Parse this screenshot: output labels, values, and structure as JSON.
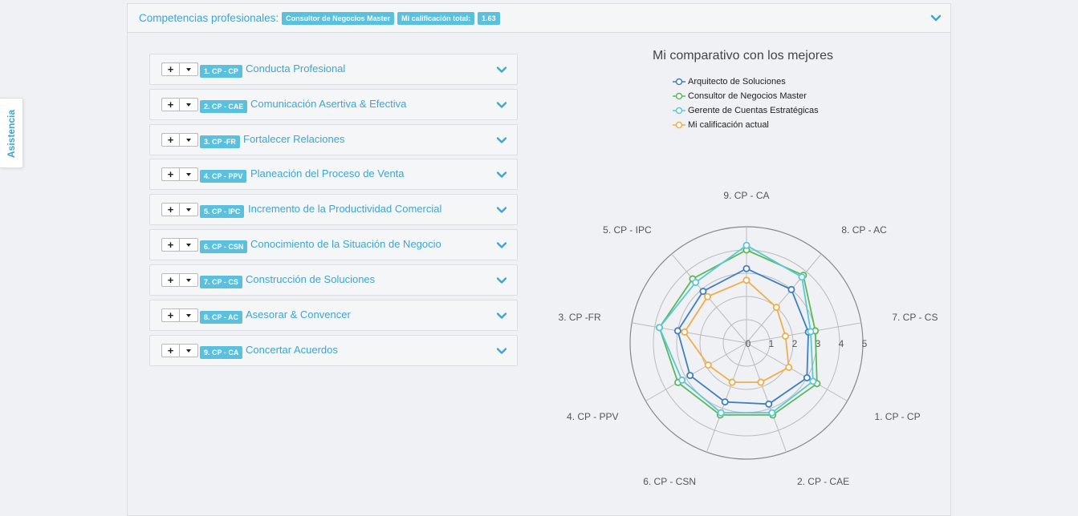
{
  "side_tab": {
    "label": "Asistencia"
  },
  "header": {
    "title": "Competencias profesionales:",
    "badge_role": "Consultor de Negocios Master",
    "badge_score_label": "Mi calificación total:",
    "badge_score_value": "1.63"
  },
  "competencies": [
    {
      "code": "1. CP - CP",
      "title": "Conducta Profesional"
    },
    {
      "code": "2. CP - CAE",
      "title": "Comunicación Asertiva & Efectiva"
    },
    {
      "code": "3. CP -FR",
      "title": "Fortalecer Relaciones"
    },
    {
      "code": "4. CP - PPV",
      "title": "Planeación del Proceso de Venta"
    },
    {
      "code": "5. CP - IPC",
      "title": "Incremento de la Productividad Comercial"
    },
    {
      "code": "6. CP - CSN",
      "title": "Conocimiento de la Situación de Negocio"
    },
    {
      "code": "7. CP - CS",
      "title": "Construcción de Soluciones"
    },
    {
      "code": "8. CP - AC",
      "title": "Asesorar & Convencer"
    },
    {
      "code": "9. CP - CA",
      "title": "Concertar Acuerdos"
    }
  ],
  "buttons": {
    "plus": "+"
  },
  "chart_data": {
    "type": "radar",
    "title": "Mi comparativo con los mejores",
    "categories": [
      "9. CP - CA",
      "8. CP - AC",
      "7. CP - CS",
      "1. CP - CP",
      "2. CP - CAE",
      "6. CP - CSN",
      "4. CP - PPV",
      "3. CP -FR",
      "5. CP - IPC"
    ],
    "rlim": [
      0,
      5
    ],
    "ticks": [
      "0",
      "1",
      "2",
      "3",
      "4",
      "5"
    ],
    "series": [
      {
        "name": "Arquitecto de Soluciones",
        "color": "#3f7fc1",
        "values": [
          3.2,
          3.0,
          2.7,
          3.0,
          2.8,
          2.7,
          2.8,
          3.0,
          2.9
        ]
      },
      {
        "name": "Consultor de Negocios Master",
        "color": "#5cb85c",
        "values": [
          4.0,
          3.8,
          3.0,
          3.5,
          3.3,
          3.3,
          3.4,
          3.8,
          3.6
        ]
      },
      {
        "name": "Gerente de Cuentas Estratégicas",
        "color": "#5bc8d6",
        "values": [
          4.2,
          3.7,
          2.8,
          3.3,
          3.2,
          3.2,
          3.2,
          3.8,
          3.4
        ]
      },
      {
        "name": "Mi calificación actual",
        "color": "#f0ad4e",
        "values": [
          2.7,
          2.0,
          1.7,
          2.1,
          1.8,
          1.8,
          1.9,
          2.7,
          2.6
        ]
      }
    ]
  }
}
